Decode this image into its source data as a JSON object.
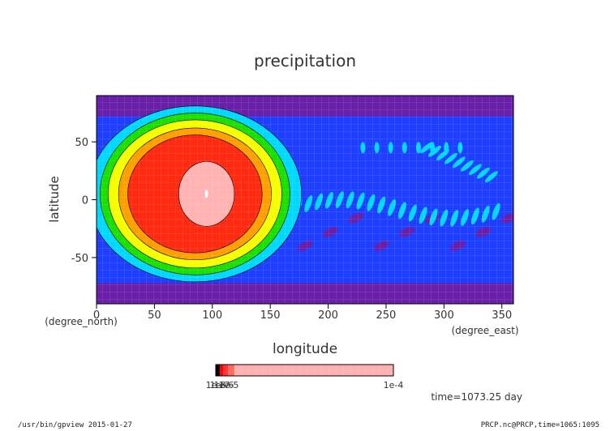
{
  "chart_data": {
    "type": "heatmap",
    "title": "precipitation",
    "xlabel": "longitude",
    "ylabel": "latitude",
    "x_unit": "(degree_east)",
    "y_unit": "(degree_north)",
    "xlim": [
      0,
      360
    ],
    "ylim": [
      -90,
      90
    ],
    "x_ticks": [
      0,
      50,
      100,
      150,
      200,
      250,
      300,
      350
    ],
    "y_ticks": [
      50,
      0,
      -50
    ],
    "colorbar": {
      "tick_labels": [
        "1e-8",
        "1e-4"
      ],
      "overlap_labels": [
        "1e-7",
        "1e-6",
        "1e-5"
      ],
      "colors": [
        "#000000",
        "#ff0000",
        "#ff3030",
        "#ff6a60",
        "#ffb0b0"
      ]
    },
    "levels_colors": [
      "#6a1fa8",
      "#1e3fff",
      "#00d8ff",
      "#19e000",
      "#f6ff00",
      "#ff9f00",
      "#ff2a10",
      "#ffb3b3"
    ],
    "features": [
      {
        "kind": "ring-center",
        "lon": 85,
        "lat": 5
      },
      {
        "kind": "peak-center",
        "lon": 95,
        "lat": 5
      }
    ],
    "time_label": "time=1073.25 day",
    "footer_left": "/usr/bin/gpview  2015-01-27",
    "footer_right": "PRCP.nc@PRCP,time=1065:1095"
  }
}
